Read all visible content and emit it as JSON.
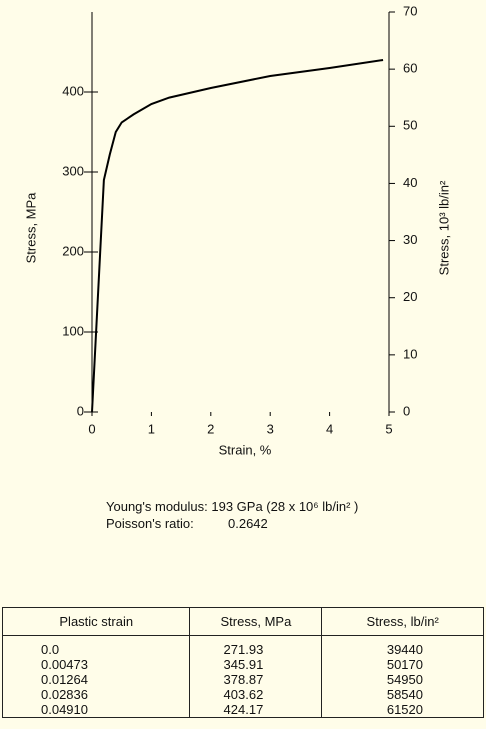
{
  "chart_data": {
    "type": "line",
    "x": [
      0,
      0.2,
      0.3,
      0.4,
      0.5,
      0.7,
      1.0,
      1.3,
      2.0,
      3.0,
      4.0,
      4.9
    ],
    "values": [
      0,
      290,
      322,
      350,
      362,
      372,
      385,
      393,
      405,
      420,
      430,
      440
    ],
    "color": "#000000",
    "xlabel": "Strain, %",
    "ylabel": "Stress, MPa",
    "y2label": "Stress, 10³ lb/in²",
    "xlim": [
      0,
      5
    ],
    "xticks": [
      0,
      1,
      2,
      3,
      4,
      5
    ],
    "ylim": [
      0,
      500
    ],
    "yticks": [
      0,
      100,
      200,
      300,
      400
    ],
    "y2lim": [
      0,
      70
    ],
    "y2ticks": [
      0,
      10,
      20,
      30,
      40,
      50,
      60,
      70
    ]
  },
  "properties": {
    "youngs_label": "Young's modulus:",
    "youngs_value": "193 GPa (28 x 10⁶ lb/in² )",
    "poisson_label": "Poisson's ratio:",
    "poisson_value": "0.2642"
  },
  "table": {
    "headers": [
      "Plastic strain",
      "Stress, MPa",
      "Stress, lb/in²"
    ],
    "rows": [
      [
        "0.0",
        "271.93",
        "39440"
      ],
      [
        "0.00473",
        "345.91",
        "50170"
      ],
      [
        "0.01264",
        "378.87",
        "54950"
      ],
      [
        "0.02836",
        "403.62",
        "58540"
      ],
      [
        "0.04910",
        "424.17",
        "61520"
      ]
    ]
  }
}
